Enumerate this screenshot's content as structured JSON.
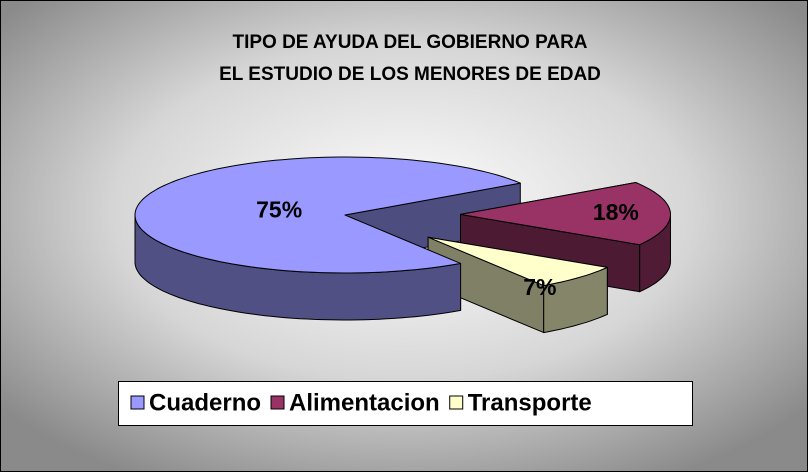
{
  "chart_data": {
    "type": "pie",
    "title": [
      "TIPO DE AYUDA DEL GOBIERNO PARA",
      "EL ESTUDIO DE LOS MENORES DE EDAD"
    ],
    "categories": [
      "Cuaderno",
      "Alimentacion",
      "Transporte"
    ],
    "values": [
      75,
      18,
      7
    ],
    "value_labels": [
      "75%",
      "18%",
      "7%"
    ],
    "colors": [
      "#9999ff",
      "#993366",
      "#ffffcc"
    ],
    "explode": [
      0,
      0.55,
      0.55
    ],
    "legend": "bottom"
  }
}
